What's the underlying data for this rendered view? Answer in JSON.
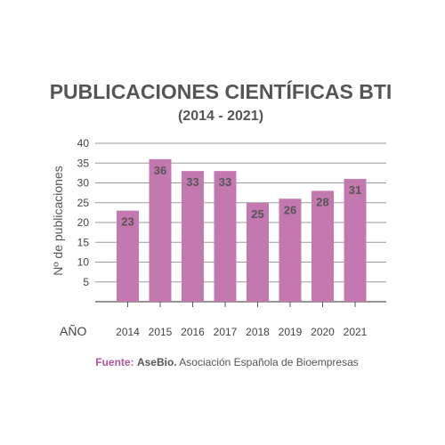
{
  "chart_data": {
    "type": "bar",
    "title": "PUBLICACIONES CIENTÍFICAS BTI",
    "subtitle": "(2014 - 2021)",
    "xlabel": "AÑO",
    "ylabel": "Nº de publicaciones",
    "categories": [
      "2014",
      "2015",
      "2016",
      "2017",
      "2018",
      "2019",
      "2020",
      "2021"
    ],
    "values": [
      23,
      36,
      33,
      33,
      25,
      26,
      28,
      31
    ],
    "yticks": [
      5,
      10,
      15,
      20,
      25,
      30,
      35,
      40
    ],
    "ylim": [
      0,
      40
    ],
    "grid": true,
    "bar_color": "#c478b0",
    "accent_color": "#b0569c"
  },
  "source": {
    "prefix": "Fuente:",
    "name": "AseBio.",
    "description": "Asociación Española de Bioempresas"
  }
}
